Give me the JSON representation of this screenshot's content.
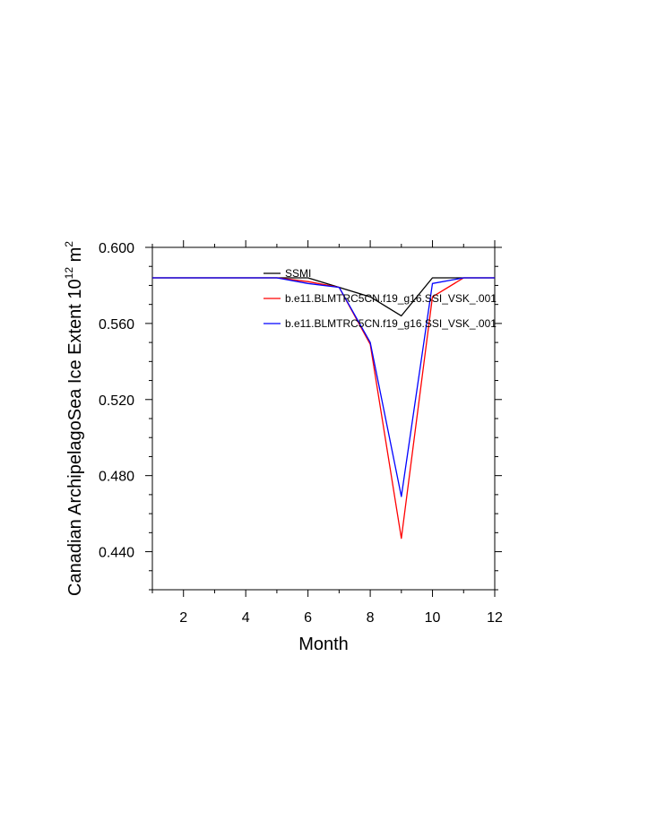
{
  "chart_data": {
    "type": "line",
    "xlabel": "Month",
    "ylabel": "Canadian ArchipelagoSea Ice Extent 10",
    "ylabel_exp": "12",
    "ylabel_unit": "m",
    "ylabel_unit_exp": "2",
    "xlim": [
      1,
      12
    ],
    "ylim": [
      0.42,
      0.6
    ],
    "xticks": [
      2,
      4,
      6,
      8,
      10,
      12
    ],
    "xtick_labels": [
      "2",
      "4",
      "6",
      "8",
      "10",
      "12"
    ],
    "yticks": [
      0.44,
      0.48,
      0.52,
      0.56,
      0.6
    ],
    "ytick_labels": [
      "0.440",
      "0.480",
      "0.520",
      "0.560",
      "0.600"
    ],
    "grid": false,
    "legend_position": "top-center inside",
    "x": [
      1,
      2,
      3,
      4,
      5,
      6,
      7,
      8,
      9,
      10,
      11,
      12
    ],
    "series": [
      {
        "name": "SSMI",
        "color": "#000000",
        "values": [
          0.584,
          0.584,
          0.584,
          0.584,
          0.584,
          0.584,
          0.579,
          0.574,
          0.564,
          0.584,
          0.584,
          0.584
        ]
      },
      {
        "name": "b.e11.BLMTRC5CN.f19_g16.SSI_VSK_.001",
        "color": "#ff0000",
        "values": [
          0.584,
          0.584,
          0.584,
          0.584,
          0.584,
          0.582,
          0.579,
          0.549,
          0.447,
          0.574,
          0.584,
          0.584
        ]
      },
      {
        "name": "b.e11.BLMTRC5CN.f19_g16.SSI_VSK_.001",
        "color": "#0000ff",
        "values": [
          0.584,
          0.584,
          0.584,
          0.584,
          0.584,
          0.581,
          0.579,
          0.55,
          0.469,
          0.581,
          0.584,
          0.584
        ]
      }
    ]
  }
}
